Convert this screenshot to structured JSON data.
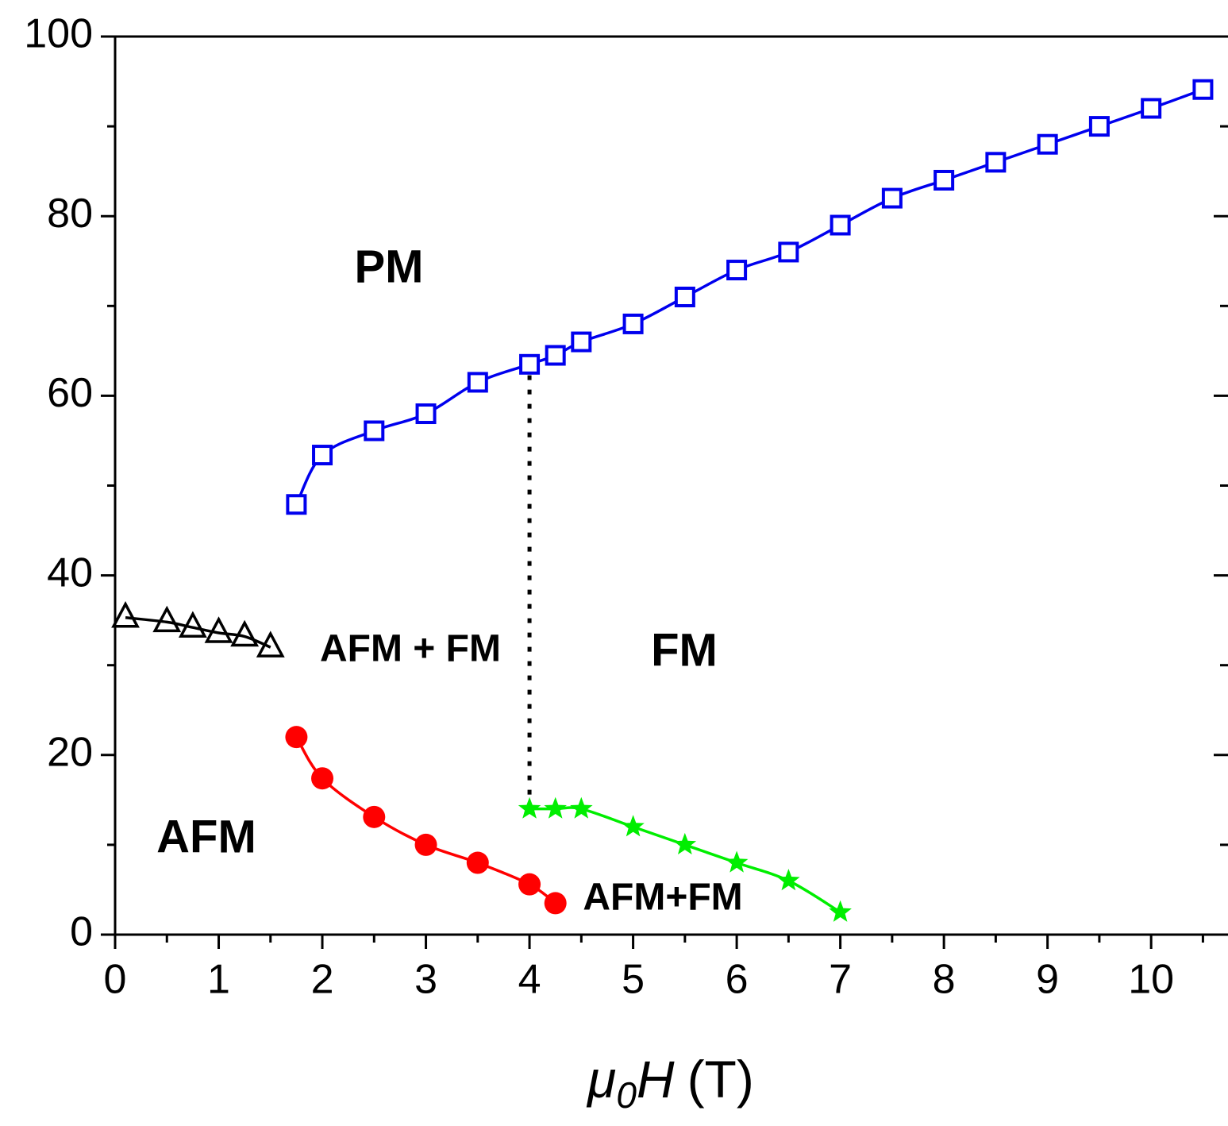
{
  "chart_data": {
    "type": "scatter-line",
    "x_label": {
      "symbol": "μ",
      "subscript": "0",
      "variable": "H",
      "unit": "(T)"
    },
    "xlim": [
      0,
      10.65
    ],
    "ylim": [
      0,
      100
    ],
    "xticks": [
      0,
      1,
      2,
      3,
      4,
      5,
      6,
      7,
      8,
      9,
      10
    ],
    "xticks_minor": [
      0.5,
      1.5,
      2.5,
      3.5,
      4.5,
      5.5,
      6.5,
      7.5,
      8.5,
      9.5,
      10.5
    ],
    "yticks": [
      0,
      20,
      40,
      60,
      80,
      100
    ],
    "yticks_minor": [
      10,
      30,
      50,
      70,
      90
    ],
    "series": [
      {
        "marker": "triangle",
        "color": "#000000",
        "x": [
          0.1,
          0.5,
          0.75,
          1,
          1.25,
          1.5
        ],
        "values": [
          35.3,
          34.8,
          34.2,
          33.6,
          33.2,
          32
        ]
      },
      {
        "marker": "square",
        "color": "#0000ee",
        "x": [
          1.75,
          2,
          2.5,
          3,
          3.5,
          4,
          4.25,
          4.5,
          5,
          5.5,
          6,
          6.5,
          7,
          7.5,
          8,
          8.5,
          9,
          9.5,
          10,
          10.5
        ],
        "values": [
          47.9,
          53.4,
          56.1,
          58,
          61.5,
          63.5,
          64.5,
          66,
          68,
          71,
          74,
          76,
          79,
          82,
          84,
          86,
          88,
          90,
          92,
          94.1
        ]
      },
      {
        "marker": "circle",
        "color": "#ff0000",
        "x": [
          1.75,
          2,
          2.5,
          3,
          3.5,
          4,
          4.25
        ],
        "values": [
          22,
          17.4,
          13.1,
          10,
          8,
          5.6,
          3.5
        ]
      },
      {
        "marker": "star",
        "color": "#00ee00",
        "x": [
          4,
          4.25,
          4.5,
          5,
          5.5,
          6,
          6.5,
          7
        ],
        "values": [
          14,
          14,
          14,
          12,
          10,
          8,
          6,
          2.5
        ]
      }
    ],
    "boundary": {
      "x": 4,
      "y_from": 14,
      "y_to": 63.5
    },
    "annotations": [
      "PM",
      "AFM + FM",
      "FM",
      "AFM",
      "AFM+FM"
    ]
  }
}
